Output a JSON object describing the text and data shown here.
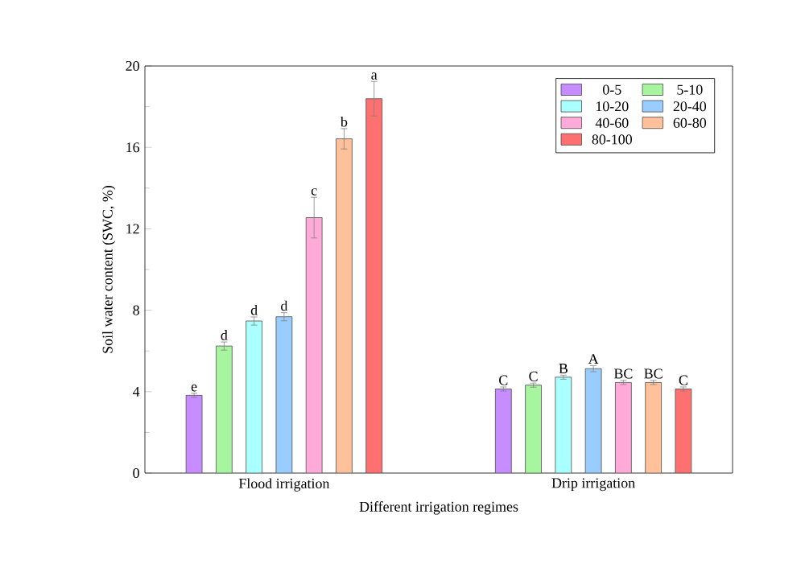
{
  "chart_data": {
    "type": "bar",
    "xlabel": "Different irrigation regimes",
    "ylabel": "Soil water content (SWC, %)",
    "categories": [
      "Flood irrigation",
      "Drip irrigation"
    ],
    "ylim": [
      0,
      20
    ],
    "yticks": [
      0,
      4,
      8,
      12,
      16,
      20
    ],
    "grid": false,
    "legend": "top right",
    "series": [
      {
        "name": "0-5",
        "color": "#c78cff",
        "values": [
          3.82,
          4.13
        ],
        "errors": [
          0.1,
          0.1
        ],
        "value_labels": [
          "e",
          "C"
        ]
      },
      {
        "name": "5-10",
        "color": "#a8f5a0",
        "values": [
          6.24,
          4.32
        ],
        "errors": [
          0.2,
          0.1
        ],
        "value_labels": [
          "d",
          "C"
        ]
      },
      {
        "name": "10-20",
        "color": "#aaffff",
        "values": [
          7.47,
          4.71
        ],
        "errors": [
          0.2,
          0.1
        ],
        "value_labels": [
          "d",
          "B"
        ]
      },
      {
        "name": "20-40",
        "color": "#99ccff",
        "values": [
          7.68,
          5.13
        ],
        "errors": [
          0.2,
          0.15
        ],
        "value_labels": [
          "d",
          "A"
        ]
      },
      {
        "name": "40-60",
        "color": "#ffaad8",
        "values": [
          12.55,
          4.45
        ],
        "errors": [
          1.0,
          0.1
        ],
        "value_labels": [
          "c",
          "BC"
        ]
      },
      {
        "name": "60-80",
        "color": "#ffc09a",
        "values": [
          16.42,
          4.45
        ],
        "errors": [
          0.5,
          0.1
        ],
        "value_labels": [
          "b",
          "BC"
        ]
      },
      {
        "name": "80-100",
        "color": "#ff7070",
        "values": [
          18.39,
          4.13
        ],
        "errors": [
          0.85,
          0.1
        ],
        "value_labels": [
          "a",
          "C"
        ]
      }
    ]
  }
}
